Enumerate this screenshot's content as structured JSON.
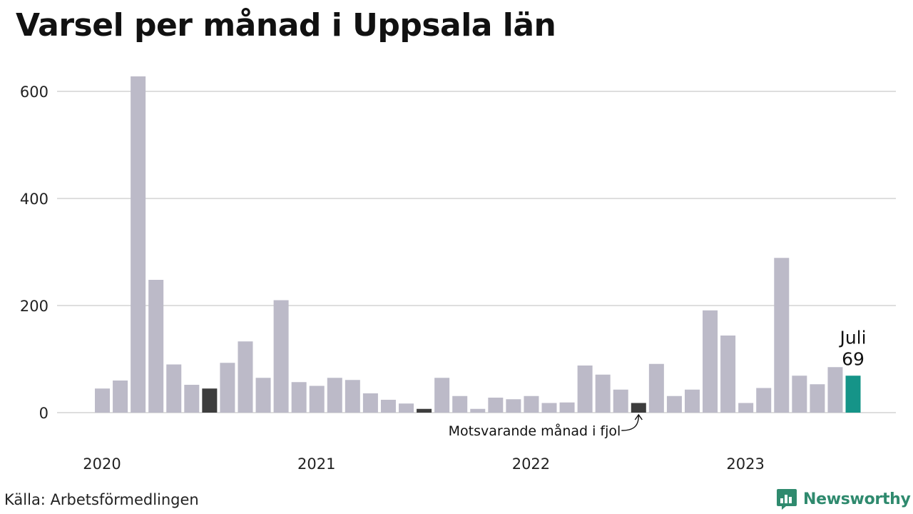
{
  "title": "Varsel per månad i Uppsala län",
  "source": "Källa: Arbetsförmedlingen",
  "brand": {
    "name": "Newsworthy",
    "color": "#2f8a6e"
  },
  "colors": {
    "bar": "#bcbac8",
    "previous_year": "#3d3d3d",
    "latest": "#159488",
    "grid": "#dedede"
  },
  "chart_data": {
    "type": "bar",
    "title": "Varsel per månad i Uppsala län",
    "xlabel": "",
    "ylabel": "",
    "ylim": [
      0,
      640
    ],
    "yticks": [
      0,
      200,
      400,
      600
    ],
    "grid": true,
    "year_labels": [
      {
        "label": "2020",
        "index": 0
      },
      {
        "label": "2021",
        "index": 12
      },
      {
        "label": "2022",
        "index": 24
      },
      {
        "label": "2023",
        "index": 36
      }
    ],
    "categories": [
      "2020-01",
      "2020-02",
      "2020-03",
      "2020-04",
      "2020-05",
      "2020-06",
      "2020-07",
      "2020-08",
      "2020-09",
      "2020-10",
      "2020-11",
      "2020-12",
      "2021-01",
      "2021-02",
      "2021-03",
      "2021-04",
      "2021-05",
      "2021-06",
      "2021-07",
      "2021-08",
      "2021-09",
      "2021-10",
      "2021-11",
      "2021-12",
      "2022-01",
      "2022-02",
      "2022-03",
      "2022-04",
      "2022-05",
      "2022-06",
      "2022-07",
      "2022-08",
      "2022-09",
      "2022-10",
      "2022-11",
      "2022-12",
      "2023-01",
      "2023-02",
      "2023-03",
      "2023-04",
      "2023-05",
      "2023-06",
      "2023-07"
    ],
    "values": [
      45,
      60,
      628,
      248,
      90,
      52,
      45,
      93,
      133,
      65,
      210,
      57,
      50,
      65,
      61,
      36,
      24,
      17,
      7,
      65,
      31,
      7,
      28,
      25,
      31,
      18,
      19,
      88,
      71,
      43,
      18,
      91,
      31,
      43,
      191,
      144,
      18,
      46,
      289,
      69,
      53,
      85,
      69
    ],
    "highlight": {
      "previous_year_indices": [
        6,
        18,
        30
      ],
      "latest_index": 42
    },
    "annotations": {
      "latest_month": "Juli",
      "latest_value": "69",
      "previous_year_note": "Motsvarande månad i fjol"
    }
  }
}
